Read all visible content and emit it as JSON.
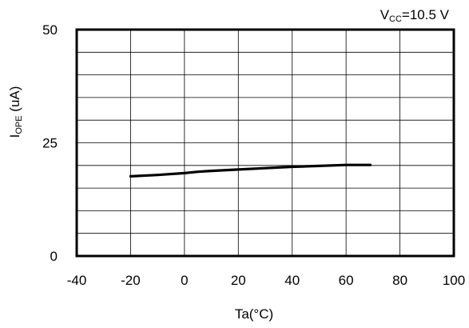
{
  "chart_data": {
    "type": "line",
    "annotation": {
      "main": "V",
      "sub": "CC",
      "rest": "=10.5 V"
    },
    "ylabel": {
      "main": "I",
      "sub": "OPE",
      "rest": " (uA)"
    },
    "xlabel": "Ta(°C)",
    "xlim": [
      -40,
      100
    ],
    "ylim": [
      0,
      50
    ],
    "xticks": [
      -40,
      -20,
      0,
      20,
      40,
      60,
      80,
      100
    ],
    "xtick_labels": [
      "-40",
      "-20",
      "0",
      "20",
      "40",
      "60",
      "80",
      "100"
    ],
    "yticks": [
      0,
      25,
      50
    ],
    "ytick_labels": [
      "0",
      "25",
      "50"
    ],
    "grid": true,
    "series": [
      {
        "x": [
          -20,
          -10,
          0,
          5,
          10,
          20,
          30,
          40,
          50,
          60,
          69
        ],
        "y": [
          17.6,
          17.9,
          18.3,
          18.6,
          18.8,
          19.1,
          19.4,
          19.7,
          19.9,
          20.1,
          20.1
        ],
        "color": "#000000"
      }
    ]
  }
}
